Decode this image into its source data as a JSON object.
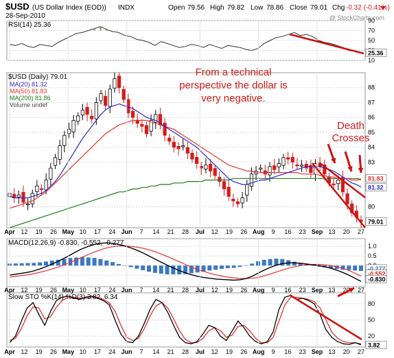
{
  "header": {
    "symbol": "$USD",
    "name": "(US Dollar Index (EOD))",
    "exchange": "INDX",
    "date": "28-Sep-2010",
    "watermark": "@ StockCharts.com",
    "open_label": "Open",
    "open": "79.56",
    "high_label": "High",
    "high": "79.82",
    "low_label": "Low",
    "low": "78.86",
    "close_label": "Close",
    "close": "79.01",
    "chg_label": "Chg",
    "chg": "-0.32 (-0.41%)"
  },
  "colors": {
    "up": "#000000",
    "down": "#d61a1a",
    "ma20": "#2a2ac8",
    "ma50": "#e83030",
    "ma200": "#1d7a1d",
    "rsi": "#333333",
    "hist": "#3a78c2",
    "stoK": "#000000",
    "stoD": "#e02020",
    "annotation": "#d11919",
    "trend": "#cc1111",
    "panel_bg": "#f7f7f7"
  },
  "chart_data": [
    {
      "type": "line",
      "panel": "rsi",
      "title": "RSI(14) 25.36",
      "ylim": [
        10,
        90
      ],
      "yticks": [
        {
          "v": 90,
          "label": "90"
        },
        {
          "v": 70,
          "label": "70"
        },
        {
          "v": 50,
          "label": "50"
        },
        {
          "v": 30,
          "label": "30"
        },
        {
          "v": 10,
          "label": "10"
        }
      ],
      "last_label": "25.36",
      "series": [
        {
          "values": [
            42,
            40,
            44,
            38,
            36,
            42,
            40,
            38,
            46,
            52,
            58,
            64,
            66,
            70,
            74,
            78,
            72,
            68,
            66,
            60,
            58,
            52,
            50,
            46,
            40,
            48,
            44,
            40,
            36,
            38,
            42,
            40,
            36,
            42,
            38,
            34,
            40,
            38,
            36,
            32,
            30,
            34,
            44,
            50,
            56,
            58,
            62,
            66,
            60,
            62,
            58,
            50,
            46,
            44,
            40,
            36,
            30,
            28,
            25
          ]
        }
      ]
    },
    {
      "type": "candlestick",
      "panel": "price",
      "title": "$USD (Daily) 79.01",
      "ylim": [
        78.6,
        89.0
      ],
      "yticks": [
        {
          "v": 88,
          "label": "88"
        },
        {
          "v": 87,
          "label": "87"
        },
        {
          "v": 86,
          "label": "86"
        },
        {
          "v": 85,
          "label": "85"
        },
        {
          "v": 84,
          "label": "84"
        },
        {
          "v": 83,
          "label": "83"
        },
        {
          "v": 80,
          "label": "80"
        }
      ],
      "legend": [
        "$USD (Daily) 79.01",
        "MA(20) 81.32",
        "MA(50) 81.83",
        "MA(200) 81.86",
        "Volume undef"
      ],
      "price_close": [
        80.9,
        80.6,
        80.8,
        80.3,
        80.2,
        80.9,
        81.4,
        81.2,
        81.8,
        82.6,
        83.3,
        84.1,
        84.8,
        85.2,
        85.8,
        86.1,
        86.5,
        86.2,
        85.9,
        87.0,
        87.6,
        86.8,
        87.9,
        88.6,
        88.0,
        87.2,
        86.3,
        86.0,
        85.6,
        85.4,
        84.9,
        85.8,
        86.2,
        85.5,
        84.8,
        84.4,
        84.0,
        83.9,
        84.1,
        83.6,
        83.2,
        82.9,
        82.6,
        82.8,
        82.4,
        82.1,
        81.7,
        81.2,
        80.7,
        80.4,
        80.2,
        80.6,
        81.5,
        82.2,
        82.4,
        82.6,
        82.2,
        82.7,
        82.5,
        82.9,
        83.3,
        83.2,
        83.0,
        82.8,
        82.8,
        82.6,
        82.3,
        82.9,
        82.7,
        82.2,
        81.6,
        81.5,
        81.8,
        81.0,
        80.2,
        79.6,
        79.3,
        79.01
      ],
      "ma20": [
        80.7,
        80.6,
        80.6,
        80.6,
        80.6,
        80.7,
        80.8,
        80.9,
        81.1,
        81.4,
        81.7,
        82.1,
        82.6,
        83.1,
        83.6,
        84.1,
        84.6,
        85.0,
        85.4,
        85.8,
        86.2,
        86.5,
        86.7,
        86.8,
        86.9,
        86.8,
        86.7,
        86.6,
        86.4,
        86.2,
        86.0,
        85.9,
        85.8,
        85.6,
        85.4,
        85.2,
        85.0,
        84.8,
        84.6,
        84.4,
        84.2,
        84.0,
        83.7,
        83.4,
        83.1,
        82.8,
        82.5,
        82.2,
        81.9,
        81.7,
        81.6,
        81.5,
        81.5,
        81.6,
        81.7,
        81.8,
        81.8,
        81.9,
        82.0,
        82.1,
        82.2,
        82.3,
        82.4,
        82.5,
        82.6,
        82.7,
        82.7,
        82.7,
        82.7,
        82.6,
        82.5,
        82.4,
        82.2,
        82.0,
        81.8,
        81.6,
        81.5,
        81.32
      ],
      "ma50": [
        79.9,
        80.0,
        80.1,
        80.2,
        80.3,
        80.4,
        80.6,
        80.8,
        81.0,
        81.3,
        81.6,
        81.9,
        82.2,
        82.5,
        82.8,
        83.1,
        83.4,
        83.7,
        84.0,
        84.3,
        84.6,
        84.9,
        85.1,
        85.3,
        85.5,
        85.6,
        85.7,
        85.8,
        85.8,
        85.8,
        85.8,
        85.7,
        85.6,
        85.5,
        85.4,
        85.3,
        85.2,
        85.0,
        84.8,
        84.6,
        84.4,
        84.2,
        84.0,
        83.8,
        83.6,
        83.4,
        83.2,
        83.0,
        82.8,
        82.7,
        82.6,
        82.5,
        82.4,
        82.4,
        82.3,
        82.3,
        82.3,
        82.3,
        82.3,
        82.3,
        82.3,
        82.3,
        82.3,
        82.3,
        82.2,
        82.2,
        82.2,
        82.2,
        82.1,
        82.1,
        82.0,
        82.0,
        81.9,
        81.9,
        81.9,
        81.8,
        81.8,
        81.83
      ],
      "ma200": [
        78.6,
        78.7,
        78.8,
        78.9,
        79.0,
        79.1,
        79.2,
        79.3,
        79.4,
        79.5,
        79.6,
        79.7,
        79.8,
        79.9,
        80.0,
        80.1,
        80.2,
        80.3,
        80.4,
        80.5,
        80.6,
        80.7,
        80.8,
        80.9,
        81.0,
        81.0,
        81.1,
        81.2,
        81.2,
        81.3,
        81.3,
        81.4,
        81.4,
        81.5,
        81.5,
        81.5,
        81.6,
        81.6,
        81.6,
        81.7,
        81.7,
        81.7,
        81.7,
        81.8,
        81.8,
        81.8,
        81.8,
        81.8,
        81.8,
        81.9,
        81.9,
        81.9,
        81.9,
        81.9,
        81.9,
        81.9,
        81.9,
        81.9,
        81.9,
        81.9,
        81.9,
        81.9,
        81.9,
        81.9,
        81.9,
        81.9,
        81.9,
        81.9,
        81.9,
        81.9,
        81.9,
        81.9,
        81.9,
        81.9,
        81.9,
        81.9,
        81.9,
        81.86
      ],
      "last_labels": {
        "ma50": "81.83",
        "ma20": "81.32",
        "price": "79.01"
      }
    },
    {
      "type": "line",
      "panel": "macd",
      "title": "MACD(12,26,9) -0.830, -0.552, -0.277",
      "ylim": [
        -1.1,
        1.4
      ],
      "yticks": [
        {
          "v": 1.0,
          "label": "1.0"
        },
        {
          "v": 0.5,
          "label": "0.5"
        },
        {
          "v": 0.0,
          "label": "0.0"
        },
        {
          "v": -0.5,
          "label": "-0.5"
        }
      ],
      "last_labels": [
        "-0.277",
        "-0.552",
        "-0.830"
      ],
      "macd": [
        -0.5,
        -0.45,
        -0.4,
        -0.35,
        -0.28,
        -0.18,
        -0.06,
        0.08,
        0.22,
        0.38,
        0.55,
        0.72,
        0.88,
        1.0,
        1.1,
        1.16,
        1.18,
        1.16,
        1.1,
        1.02,
        0.92,
        0.8,
        0.66,
        0.5,
        0.34,
        0.18,
        0.02,
        -0.12,
        -0.26,
        -0.38,
        -0.48,
        -0.56,
        -0.62,
        -0.66,
        -0.7,
        -0.72,
        -0.74,
        -0.76,
        -0.74,
        -0.68,
        -0.56,
        -0.4,
        -0.24,
        -0.1,
        0.02,
        0.1,
        0.14,
        0.14,
        0.12,
        0.08,
        0.04,
        0.0,
        -0.06,
        -0.14,
        -0.24,
        -0.36,
        -0.5,
        -0.66,
        -0.83
      ],
      "signal": [
        -0.6,
        -0.56,
        -0.52,
        -0.48,
        -0.42,
        -0.35,
        -0.27,
        -0.18,
        -0.08,
        0.04,
        0.16,
        0.3,
        0.44,
        0.58,
        0.7,
        0.82,
        0.92,
        0.98,
        1.02,
        1.02,
        1.0,
        0.96,
        0.9,
        0.82,
        0.72,
        0.6,
        0.48,
        0.34,
        0.2,
        0.06,
        -0.08,
        -0.2,
        -0.3,
        -0.4,
        -0.48,
        -0.55,
        -0.6,
        -0.64,
        -0.67,
        -0.68,
        -0.66,
        -0.62,
        -0.54,
        -0.44,
        -0.34,
        -0.24,
        -0.14,
        -0.06,
        0.0,
        0.04,
        0.06,
        0.06,
        0.04,
        0.0,
        -0.06,
        -0.14,
        -0.26,
        -0.4,
        -0.55
      ],
      "histogram": [
        0.1,
        0.11,
        0.12,
        0.13,
        0.14,
        0.17,
        0.21,
        0.26,
        0.3,
        0.34,
        0.39,
        0.42,
        0.44,
        0.42,
        0.4,
        0.34,
        0.26,
        0.18,
        0.08,
        0.0,
        -0.08,
        -0.16,
        -0.24,
        -0.32,
        -0.38,
        -0.42,
        -0.46,
        -0.46,
        -0.46,
        -0.44,
        -0.4,
        -0.36,
        -0.32,
        -0.26,
        -0.22,
        -0.17,
        -0.14,
        -0.12,
        -0.07,
        0.0,
        0.1,
        0.22,
        0.3,
        0.34,
        0.36,
        0.34,
        0.28,
        0.2,
        0.12,
        0.04,
        -0.02,
        -0.06,
        -0.1,
        -0.14,
        -0.18,
        -0.22,
        -0.24,
        -0.26,
        -0.28
      ]
    },
    {
      "type": "line",
      "panel": "sto",
      "title": "Slow STO %K(14) %D(3) 3.82, 6.34",
      "ylim": [
        0,
        100
      ],
      "yticks": [
        {
          "v": 80,
          "label": "80"
        },
        {
          "v": 50,
          "label": "50"
        },
        {
          "v": 20,
          "label": "20"
        }
      ],
      "last_label": "3.82",
      "k": [
        8,
        20,
        48,
        72,
        82,
        60,
        40,
        66,
        86,
        92,
        94,
        90,
        88,
        92,
        94,
        90,
        86,
        78,
        50,
        24,
        10,
        8,
        20,
        44,
        70,
        88,
        82,
        64,
        40,
        18,
        8,
        6,
        10,
        24,
        40,
        36,
        20,
        12,
        30,
        48,
        36,
        20,
        10,
        6,
        10,
        28,
        70,
        92,
        95,
        88,
        90,
        86,
        80,
        60,
        32,
        18,
        10,
        6,
        5,
        8,
        4
      ],
      "d": [
        12,
        16,
        34,
        58,
        74,
        72,
        52,
        56,
        74,
        86,
        92,
        92,
        90,
        90,
        92,
        92,
        88,
        82,
        66,
        40,
        18,
        12,
        16,
        34,
        58,
        76,
        82,
        72,
        52,
        30,
        14,
        8,
        8,
        16,
        30,
        36,
        30,
        18,
        22,
        38,
        40,
        30,
        16,
        8,
        8,
        18,
        48,
        78,
        92,
        92,
        90,
        88,
        84,
        72,
        50,
        28,
        16,
        10,
        8,
        8,
        6
      ]
    }
  ],
  "xaxis": {
    "ticks": [
      {
        "label": "Apr",
        "month": true
      },
      {
        "label": "12"
      },
      {
        "label": "19"
      },
      {
        "label": "26"
      },
      {
        "label": "May",
        "month": true
      },
      {
        "label": "10"
      },
      {
        "label": "17"
      },
      {
        "label": "24"
      },
      {
        "label": "Jun",
        "month": true
      },
      {
        "label": "7"
      },
      {
        "label": "14"
      },
      {
        "label": "21"
      },
      {
        "label": "28"
      },
      {
        "label": "Jul",
        "month": true
      },
      {
        "label": "12"
      },
      {
        "label": "19"
      },
      {
        "label": "26"
      },
      {
        "label": "Aug",
        "month": true
      },
      {
        "label": "9"
      },
      {
        "label": "16"
      },
      {
        "label": "23"
      },
      {
        "label": "Sep",
        "month": true
      },
      {
        "label": "13"
      },
      {
        "label": "20"
      },
      {
        "label": "27"
      }
    ]
  },
  "annotations": {
    "main_text": [
      "From a technical",
      "perspective the dollar is",
      "very negative."
    ],
    "death_text": [
      "Death",
      "Crosses"
    ]
  }
}
